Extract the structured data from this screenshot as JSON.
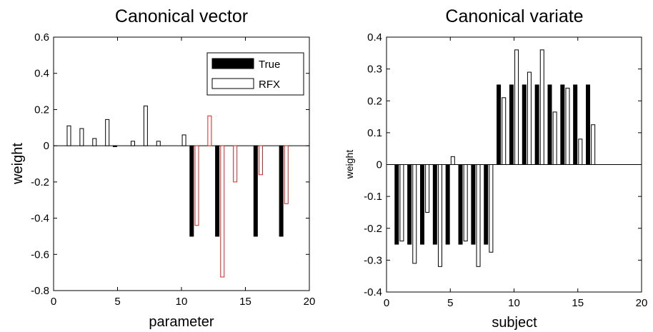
{
  "chart_data": [
    {
      "type": "bar",
      "title": "Canonical vector",
      "xlabel": "parameter",
      "ylabel": "weight",
      "xlim": [
        0,
        20
      ],
      "ylim": [
        -0.8,
        0.6
      ],
      "xticks": [
        "0",
        "5",
        "10",
        "15",
        "20"
      ],
      "yticks": [
        "-0.8",
        "-0.6",
        "-0.4",
        "-0.2",
        "0",
        "0.2",
        "0.4",
        "0.6"
      ],
      "bar_offset": 0.2,
      "bar_width": 0.28,
      "legend_position": "top-right",
      "grid": false,
      "series": [
        {
          "name": "True",
          "fill": "#000000",
          "stroke": "#000000",
          "x": [
            1,
            2,
            3,
            4,
            5,
            6,
            7,
            8,
            9,
            10,
            11,
            12,
            13,
            14,
            15,
            16,
            17,
            18
          ],
          "values": [
            0,
            0,
            0,
            0,
            -0.005,
            0,
            0,
            0,
            0,
            0,
            -0.5,
            0,
            -0.5,
            0,
            0,
            -0.5,
            0,
            -0.5
          ]
        },
        {
          "name": "RFX",
          "fill": "#ffffff",
          "stroke": "#000000",
          "red_stroke": "#e02020",
          "red_from_x": 11,
          "x": [
            1,
            2,
            3,
            4,
            5,
            6,
            7,
            8,
            9,
            10,
            11,
            12,
            13,
            14,
            15,
            16,
            17,
            18
          ],
          "values": [
            0.11,
            0.095,
            0.04,
            0.145,
            0,
            0.025,
            0.22,
            0.025,
            0,
            0.06,
            -0.44,
            0.165,
            -0.725,
            -0.2,
            0,
            -0.16,
            0,
            -0.32
          ]
        }
      ]
    },
    {
      "type": "bar",
      "title": "Canonical variate",
      "xlabel": "subject",
      "ylabel": "weight",
      "xlim": [
        0,
        20
      ],
      "ylim": [
        -0.4,
        0.4
      ],
      "xticks": [
        "0",
        "5",
        "10",
        "15",
        "20"
      ],
      "yticks": [
        "-0.4",
        "-0.3",
        "-0.2",
        "-0.1",
        "0",
        "0.1",
        "0.2",
        "0.3",
        "0.4"
      ],
      "bar_offset": 0.2,
      "bar_width": 0.28,
      "grid": false,
      "series": [
        {
          "fill": "#000000",
          "stroke": "#000000",
          "x": [
            1,
            2,
            3,
            4,
            5,
            6,
            7,
            8,
            9,
            10,
            11,
            12,
            13,
            14,
            15,
            16
          ],
          "values": [
            -0.25,
            -0.25,
            -0.25,
            -0.25,
            -0.25,
            -0.25,
            -0.25,
            -0.25,
            0.25,
            0.25,
            0.25,
            0.25,
            0.25,
            0.25,
            0.25,
            0.25
          ]
        },
        {
          "fill": "#ffffff",
          "stroke": "#000000",
          "x": [
            1,
            2,
            3,
            4,
            5,
            6,
            7,
            8,
            9,
            10,
            11,
            12,
            13,
            14,
            15,
            16
          ],
          "values": [
            -0.24,
            -0.31,
            -0.15,
            -0.32,
            0.025,
            -0.24,
            -0.32,
            -0.275,
            0.21,
            0.36,
            0.29,
            0.36,
            0.165,
            0.24,
            0.08,
            0.125
          ]
        }
      ]
    }
  ]
}
